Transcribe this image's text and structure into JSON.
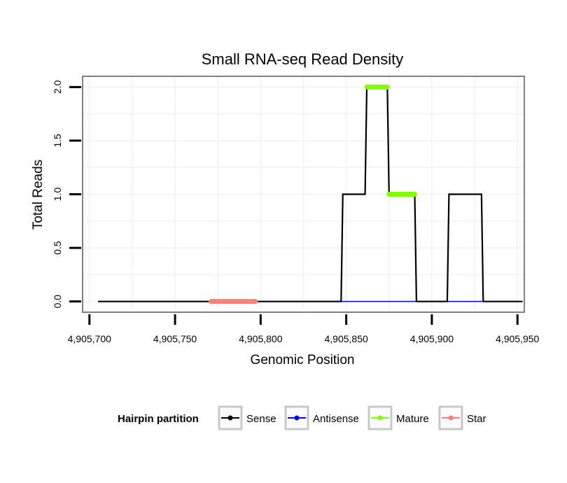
{
  "chart_data": {
    "type": "line",
    "title": "Small RNA-seq Read Density",
    "xlabel": "Genomic Position",
    "ylabel": "Total Reads",
    "xlim": [
      4905696,
      4905954
    ],
    "ylim": [
      -0.1,
      2.1
    ],
    "x_ticks": [
      4905700,
      4905750,
      4905800,
      4905850,
      4905900,
      4905950
    ],
    "x_tick_labels": [
      "4,905,700",
      "4,905,750",
      "4,905,800",
      "4,905,850",
      "4,905,900",
      "4,905,950"
    ],
    "y_ticks": [
      0,
      0.5,
      1,
      1.5,
      2
    ],
    "y_tick_labels": [
      "0.0",
      "0.5",
      "1.0",
      "1.5",
      "2.0"
    ],
    "grid": true,
    "legend": {
      "title": "Hairpin partition",
      "position": "bottom",
      "entries": [
        {
          "name": "Sense",
          "color": "#000000"
        },
        {
          "name": "Antisense",
          "color": "#0000ff"
        },
        {
          "name": "Mature",
          "color": "#7fff00"
        },
        {
          "name": "Star",
          "color": "#fa8072"
        }
      ]
    },
    "series": [
      {
        "name": "Antisense",
        "color": "#0000ff",
        "width": 1.5,
        "points": [
          [
            4905847,
            0
          ],
          [
            4905930,
            0
          ]
        ]
      },
      {
        "name": "Sense",
        "color": "#000000",
        "width": 2.2,
        "points": [
          [
            4905705,
            0
          ],
          [
            4905847,
            0
          ],
          [
            4905848,
            1
          ],
          [
            4905861,
            1
          ],
          [
            4905862,
            2
          ],
          [
            4905874,
            2
          ],
          [
            4905875,
            1
          ],
          [
            4905890,
            1
          ],
          [
            4905891,
            0
          ],
          [
            4905909,
            0
          ],
          [
            4905910,
            1
          ],
          [
            4905929,
            1
          ],
          [
            4905930,
            0
          ],
          [
            4905953,
            0
          ]
        ]
      },
      {
        "name": "Mature",
        "color": "#7fff00",
        "width": 7,
        "points": [
          [
            4905862,
            2
          ],
          [
            4905874,
            2
          ]
        ]
      },
      {
        "name": "Mature",
        "color": "#7fff00",
        "width": 7,
        "points": [
          [
            4905875,
            1
          ],
          [
            4905890,
            1
          ]
        ]
      },
      {
        "name": "Star",
        "color": "#fa8072",
        "width": 7,
        "points": [
          [
            4905771,
            0
          ],
          [
            4905797,
            0
          ]
        ]
      }
    ]
  }
}
